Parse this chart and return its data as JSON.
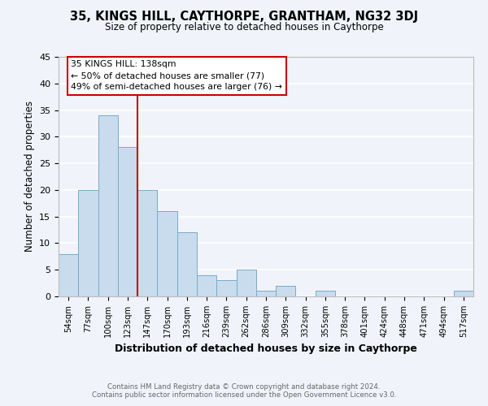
{
  "title": "35, KINGS HILL, CAYTHORPE, GRANTHAM, NG32 3DJ",
  "subtitle": "Size of property relative to detached houses in Caythorpe",
  "xlabel": "Distribution of detached houses by size in Caythorpe",
  "ylabel": "Number of detached properties",
  "bar_color": "#c8dced",
  "bar_edge_color": "#7aaac8",
  "categories": [
    "54sqm",
    "77sqm",
    "100sqm",
    "123sqm",
    "147sqm",
    "170sqm",
    "193sqm",
    "216sqm",
    "239sqm",
    "262sqm",
    "286sqm",
    "309sqm",
    "332sqm",
    "355sqm",
    "378sqm",
    "401sqm",
    "424sqm",
    "448sqm",
    "471sqm",
    "494sqm",
    "517sqm"
  ],
  "values": [
    8,
    20,
    34,
    28,
    20,
    16,
    12,
    4,
    3,
    5,
    1,
    2,
    0,
    1,
    0,
    0,
    0,
    0,
    0,
    0,
    1
  ],
  "vline_x": 3.5,
  "vline_color": "#cc0000",
  "annotation_title": "35 KINGS HILL: 138sqm",
  "annotation_line1": "← 50% of detached houses are smaller (77)",
  "annotation_line2": "49% of semi-detached houses are larger (76) →",
  "annotation_box_color": "#ffffff",
  "annotation_box_edge": "#cc0000",
  "ylim": [
    0,
    45
  ],
  "yticks": [
    0,
    5,
    10,
    15,
    20,
    25,
    30,
    35,
    40,
    45
  ],
  "footer1": "Contains HM Land Registry data © Crown copyright and database right 2024.",
  "footer2": "Contains public sector information licensed under the Open Government Licence v3.0.",
  "bg_color": "#f0f4fa",
  "grid_color": "#ffffff",
  "title_fontsize": 10.5,
  "subtitle_fontsize": 8.5
}
